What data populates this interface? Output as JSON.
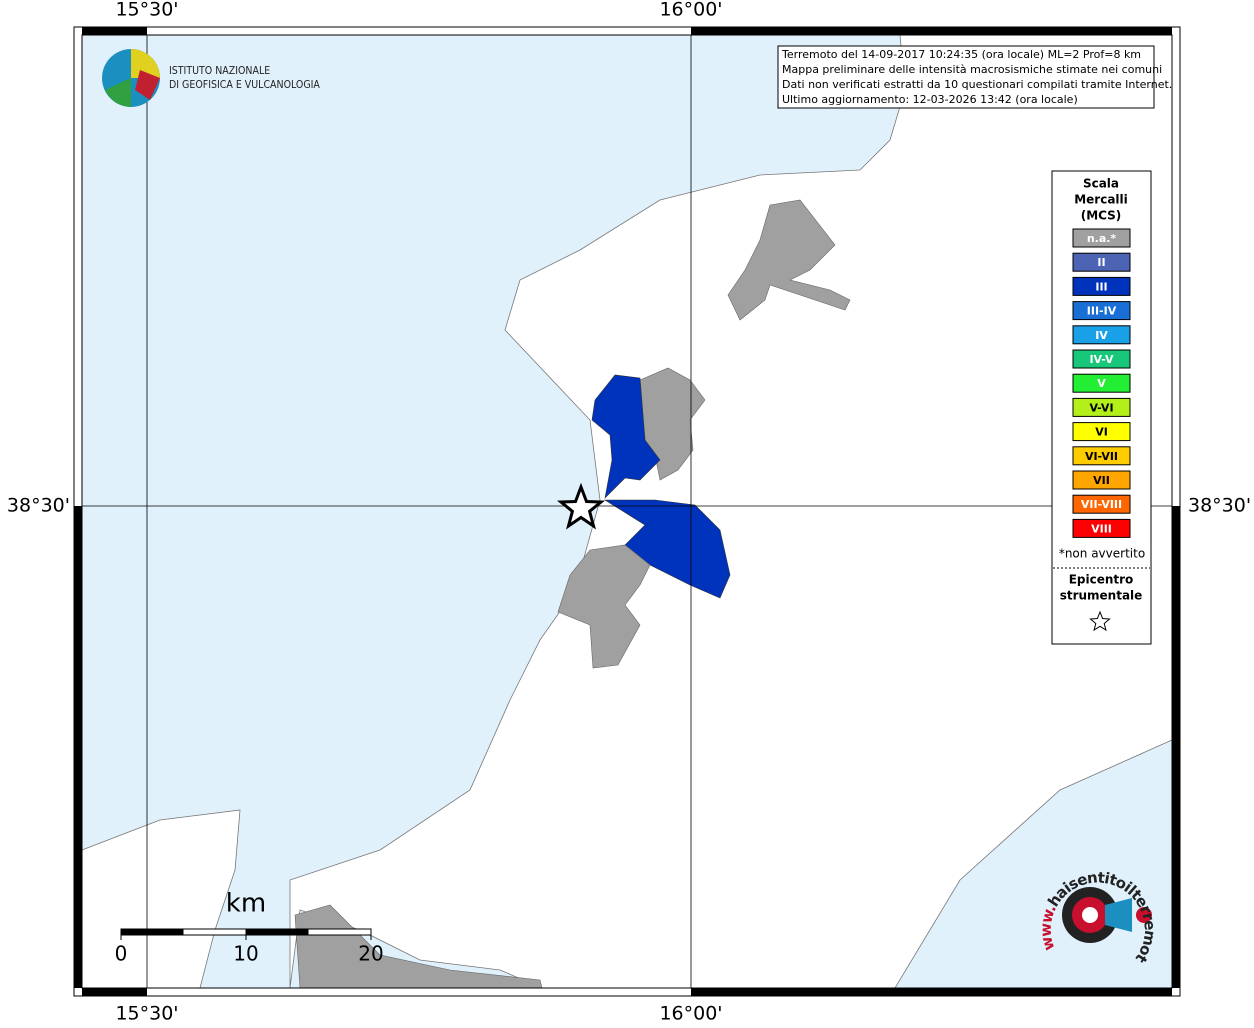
{
  "frame": {
    "lon_labels": [
      "15°30'",
      "16°00'"
    ],
    "lat_labels": [
      "38°30'"
    ]
  },
  "info": {
    "lines": [
      "Terremoto del 14-09-2017 10:24:35 (ora locale) ML=2 Prof=8 km",
      "Mappa preliminare delle intensità macrosismiche stimate nei comuni",
      "Dati non verificati estratti da 10 questionari compilati tramite Internet.",
      "Ultimo aggiornamento: 12-03-2026 13:42 (ora locale)"
    ]
  },
  "logo": {
    "lines": [
      "ISTITUTO NAZIONALE",
      "DI GEOFISICA E VULCANOLOGIA"
    ]
  },
  "legend": {
    "title": [
      "Scala",
      "Mercalli",
      "(MCS)"
    ],
    "items": [
      {
        "label": "n.a.*",
        "color": "#a0a0a0"
      },
      {
        "label": "II",
        "color": "#4d63b3"
      },
      {
        "label": "III",
        "color": "#0033bb"
      },
      {
        "label": "III-IV",
        "color": "#1a6fd6"
      },
      {
        "label": "IV",
        "color": "#1aa0e6"
      },
      {
        "label": "IV-V",
        "color": "#19c77a"
      },
      {
        "label": "V",
        "color": "#22ee33"
      },
      {
        "label": "V-VI",
        "color": "#b3f01a"
      },
      {
        "label": "VI",
        "color": "#ffff00"
      },
      {
        "label": "VI-VII",
        "color": "#ffcc00"
      },
      {
        "label": "VII",
        "color": "#ffa500"
      },
      {
        "label": "VII-VIII",
        "color": "#ff6600"
      },
      {
        "label": "VIII",
        "color": "#ff0000"
      }
    ],
    "note": "*non avvertito",
    "epicenter": [
      "Epicentro",
      "strumentale"
    ]
  },
  "scale_bar": {
    "unit": "km",
    "ticks": [
      0,
      10,
      20
    ]
  },
  "site_logo": {
    "prefix": "www.",
    "name": "haisentitoilterremoto.it"
  }
}
